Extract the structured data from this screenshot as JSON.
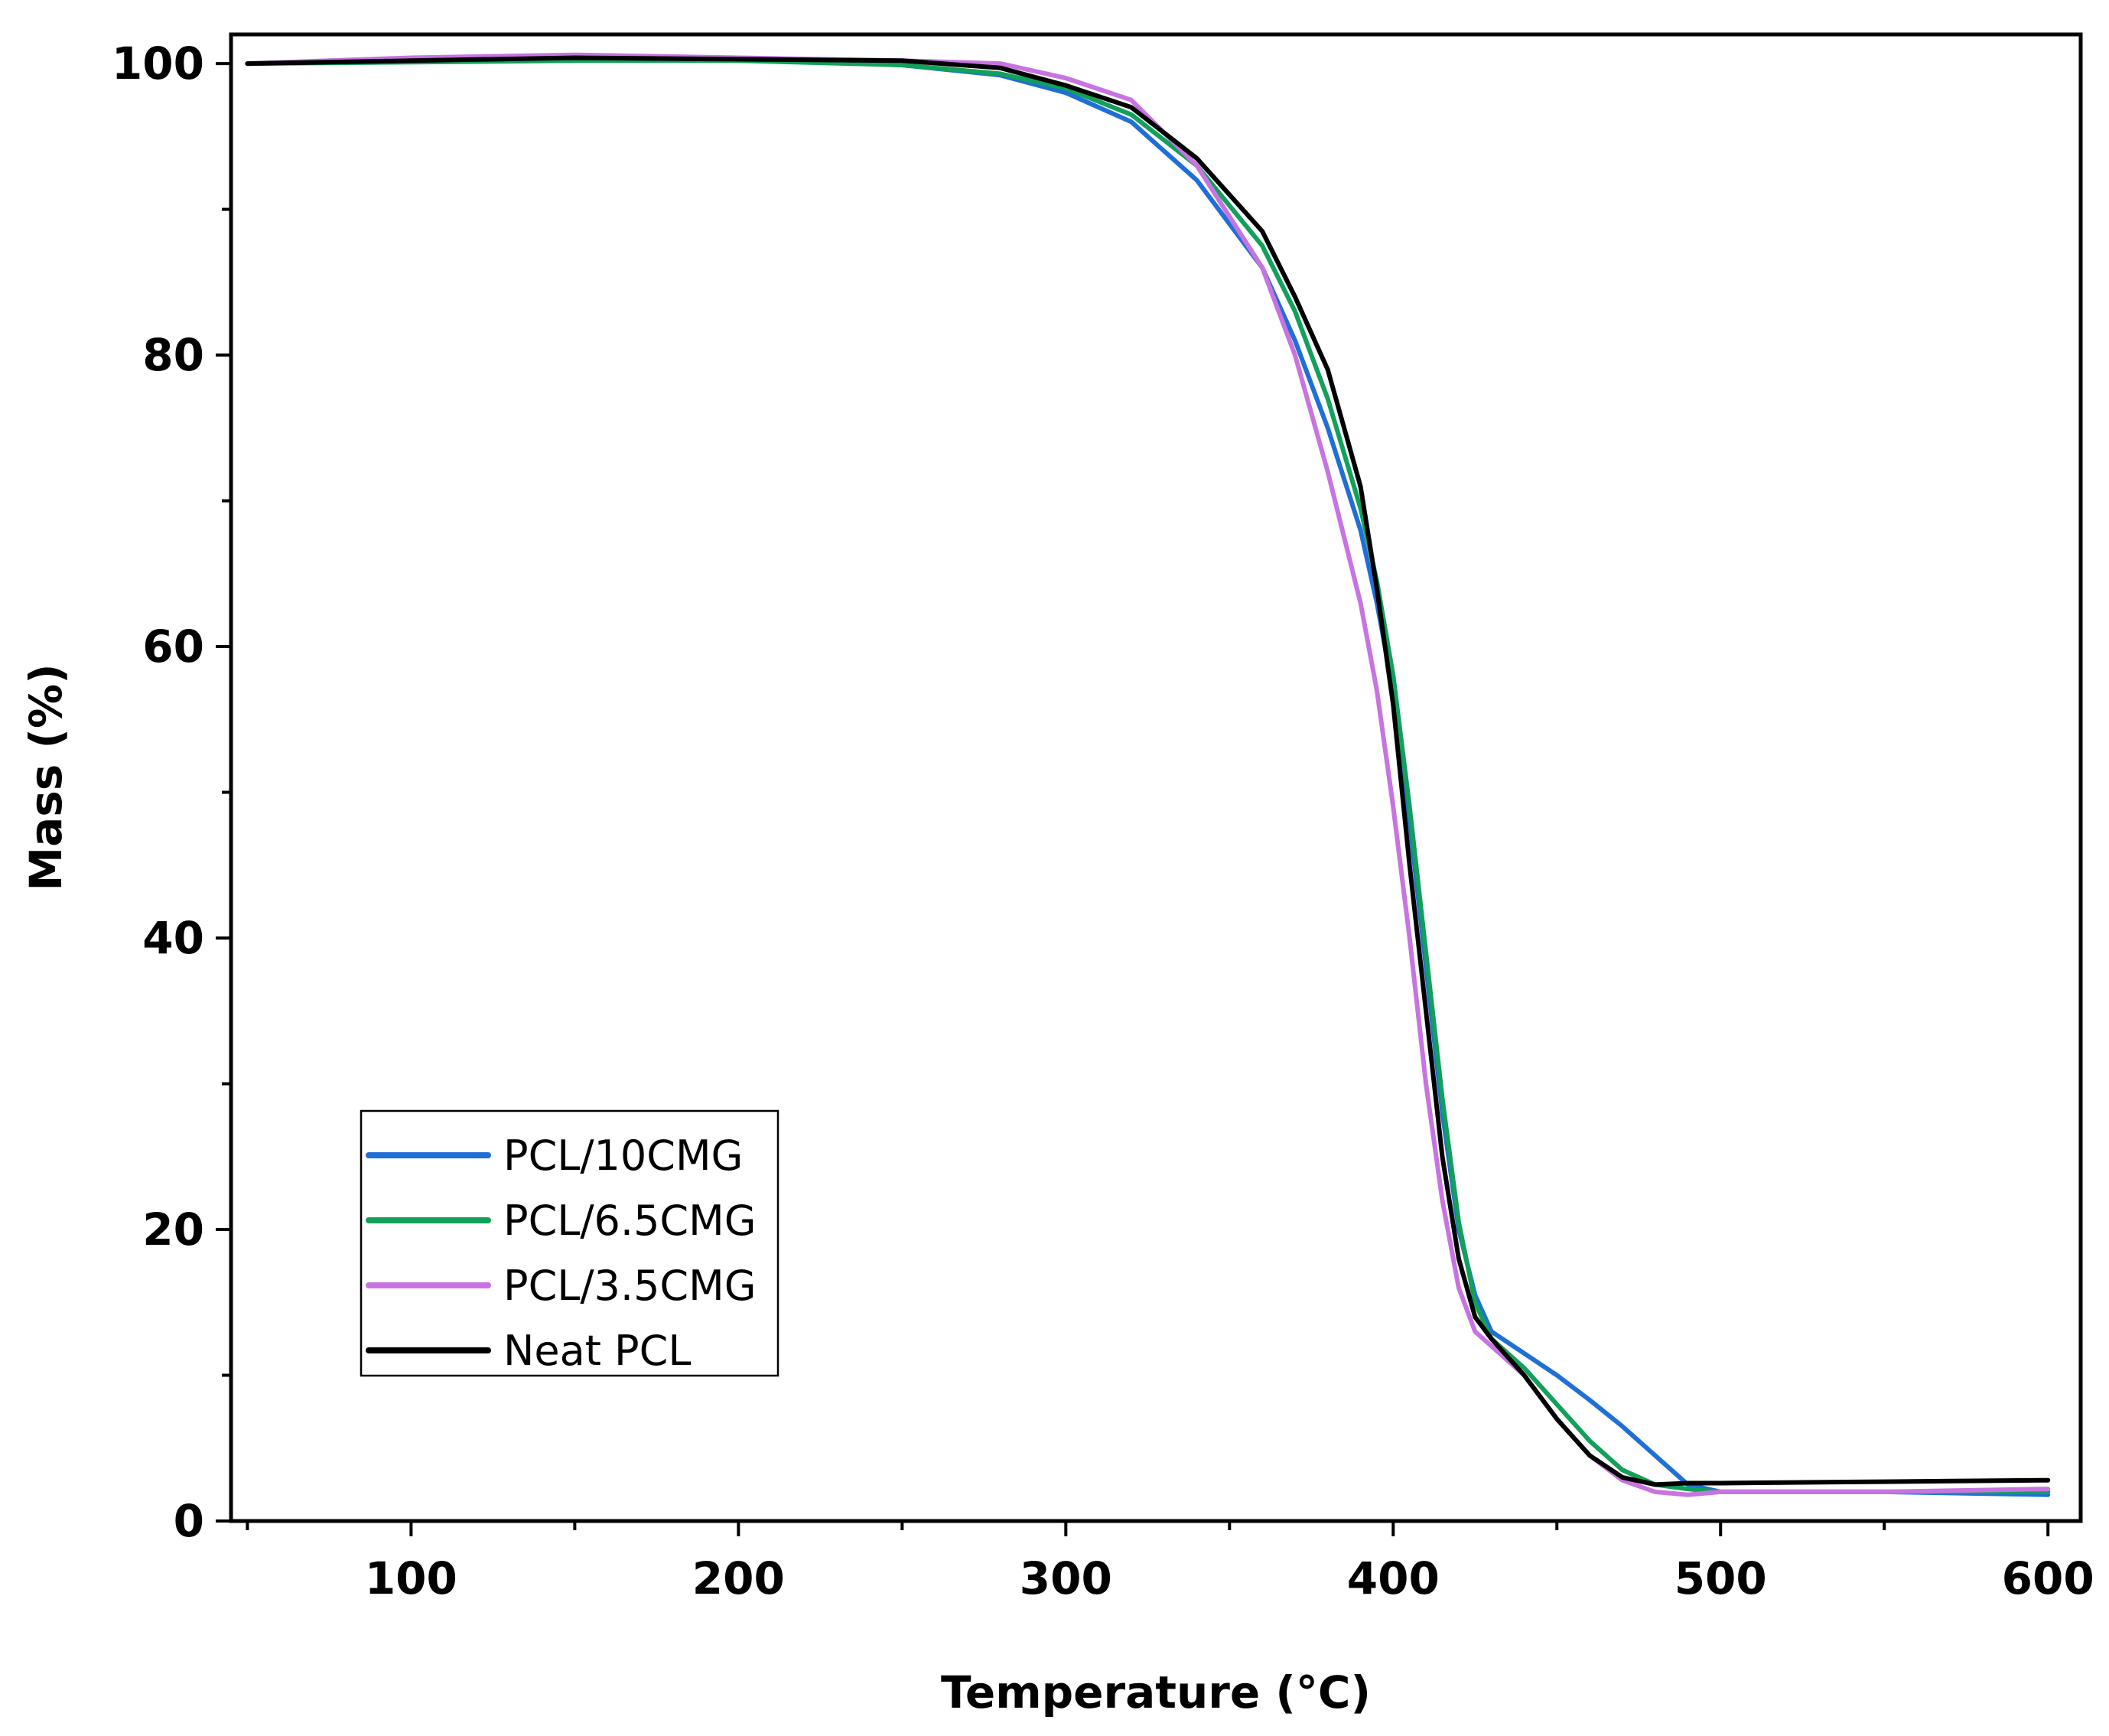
{
  "chart_data": {
    "type": "line",
    "title": "",
    "xlabel": "Temperature (°C)",
    "ylabel": "Mass (%)",
    "xlim": [
      45,
      610
    ],
    "ylim": [
      0,
      102
    ],
    "xticks": [
      100,
      200,
      300,
      400,
      500,
      600
    ],
    "yticks": [
      0,
      20,
      40,
      60,
      80,
      100
    ],
    "x_minor_step": 50,
    "y_minor_step": 10,
    "legend_position": "bottom-left",
    "grid": false,
    "series": [
      {
        "name": "PCL/10CMG",
        "color": "#1f6fd6",
        "x": [
          50,
          100,
          150,
          200,
          250,
          280,
          300,
          320,
          340,
          360,
          370,
          380,
          390,
          395,
          400,
          405,
          410,
          415,
          420,
          425,
          430,
          440,
          450,
          460,
          470,
          480,
          490,
          500,
          550,
          600
        ],
        "y": [
          100,
          100.2,
          100.4,
          100.3,
          99.9,
          99.2,
          98.0,
          96.0,
          92.0,
          86.0,
          81.0,
          75.0,
          68.0,
          63.0,
          57.0,
          48.0,
          38.0,
          28.0,
          20.0,
          15.5,
          13.0,
          11.5,
          10.0,
          8.3,
          6.5,
          4.5,
          2.5,
          2.0,
          2.0,
          1.8
        ]
      },
      {
        "name": "PCL/6.5CMG",
        "color": "#12a05a",
        "x": [
          50,
          100,
          150,
          200,
          250,
          280,
          300,
          320,
          340,
          360,
          370,
          380,
          390,
          395,
          400,
          405,
          410,
          415,
          420,
          425,
          430,
          440,
          450,
          460,
          470,
          480,
          490,
          500,
          550,
          600
        ],
        "y": [
          100,
          100.1,
          100.2,
          100.2,
          99.9,
          99.3,
          98.3,
          96.5,
          93.0,
          87.5,
          83.0,
          77.0,
          69.5,
          64.5,
          58.0,
          49.0,
          39.0,
          29.0,
          20.5,
          15.0,
          12.5,
          10.5,
          8.0,
          5.5,
          3.5,
          2.5,
          2.2,
          2.0,
          2.0,
          2.0
        ]
      },
      {
        "name": "PCL/3.5CMG",
        "color": "#c774e0",
        "x": [
          50,
          100,
          150,
          200,
          250,
          280,
          300,
          320,
          340,
          360,
          370,
          380,
          390,
          395,
          400,
          405,
          410,
          415,
          420,
          425,
          430,
          440,
          450,
          460,
          470,
          480,
          490,
          500,
          550,
          600
        ],
        "y": [
          100,
          100.4,
          100.6,
          100.4,
          100.2,
          100.0,
          99.0,
          97.5,
          93.0,
          86.0,
          80.0,
          72.0,
          63.0,
          57.0,
          49.0,
          40.0,
          30.0,
          22.0,
          16.0,
          13.0,
          12.0,
          10.0,
          7.0,
          4.5,
          2.8,
          2.0,
          1.8,
          2.0,
          2.0,
          2.2
        ]
      },
      {
        "name": "Neat PCL",
        "color": "#000000",
        "x": [
          50,
          100,
          150,
          200,
          250,
          280,
          300,
          320,
          340,
          360,
          370,
          380,
          390,
          395,
          400,
          405,
          410,
          415,
          420,
          425,
          430,
          440,
          450,
          460,
          470,
          480,
          490,
          500,
          550,
          600
        ],
        "y": [
          100,
          100.2,
          100.4,
          100.3,
          100.2,
          99.7,
          98.5,
          97.0,
          93.5,
          88.5,
          84.0,
          79.0,
          71.0,
          64.0,
          56.0,
          45.0,
          35.0,
          25.0,
          18.0,
          14.0,
          12.5,
          10.0,
          7.0,
          4.5,
          3.0,
          2.5,
          2.6,
          2.6,
          2.7,
          2.8
        ]
      }
    ]
  }
}
